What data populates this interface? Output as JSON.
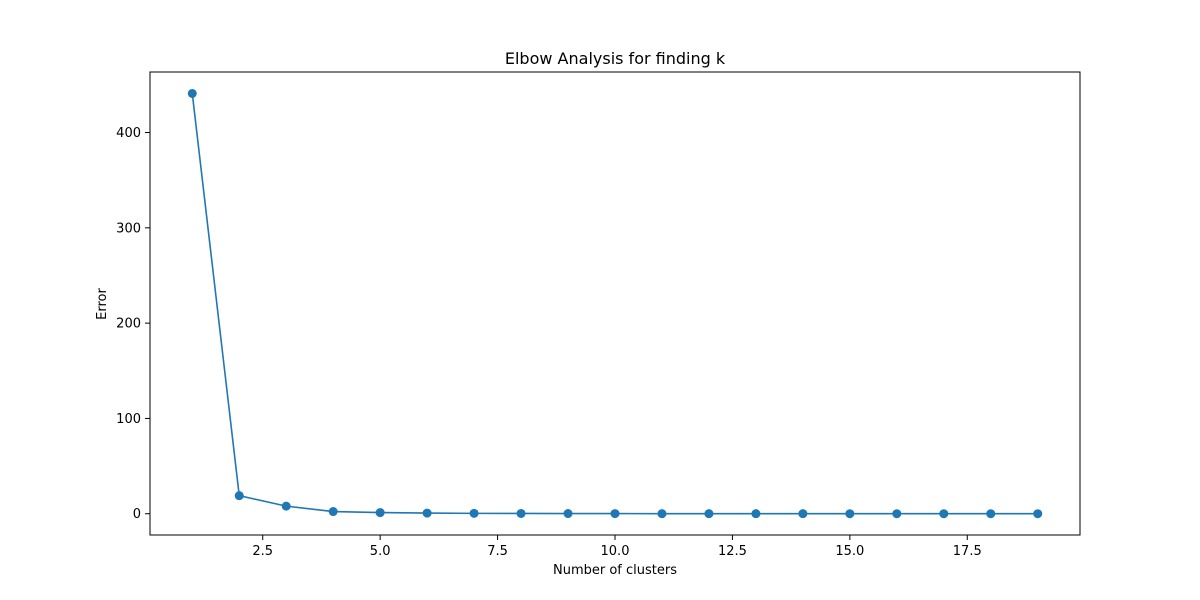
{
  "chart_data": {
    "type": "line",
    "title": "Elbow Analysis for finding k",
    "xlabel": "Number of clusters",
    "ylabel": "Error",
    "xlim": [
      0.1,
      19.9
    ],
    "ylim": [
      -22.3,
      463.5
    ],
    "x_ticks": [
      2.5,
      5.0,
      7.5,
      10.0,
      12.5,
      15.0,
      17.5
    ],
    "x_tick_labels": [
      "2.5",
      "5.0",
      "7.5",
      "10.0",
      "12.5",
      "15.0",
      "17.5"
    ],
    "y_ticks": [
      0,
      100,
      200,
      300,
      400
    ],
    "y_tick_labels": [
      "0",
      "100",
      "200",
      "300",
      "400"
    ],
    "grid": false,
    "color": "#1f77b4",
    "series": [
      {
        "x": [
          1,
          2,
          3,
          4,
          5,
          6,
          7,
          8,
          9,
          10,
          11,
          12,
          13,
          14,
          15,
          16,
          17,
          18,
          19
        ],
        "values": [
          441,
          19,
          8,
          2.3,
          1.2,
          0.7,
          0.4,
          0.3,
          0.2,
          0.15,
          0.1,
          0.1,
          0.08,
          0.07,
          0.06,
          0.05,
          0.05,
          0.04,
          0.04
        ],
        "marker": "circle"
      }
    ]
  }
}
